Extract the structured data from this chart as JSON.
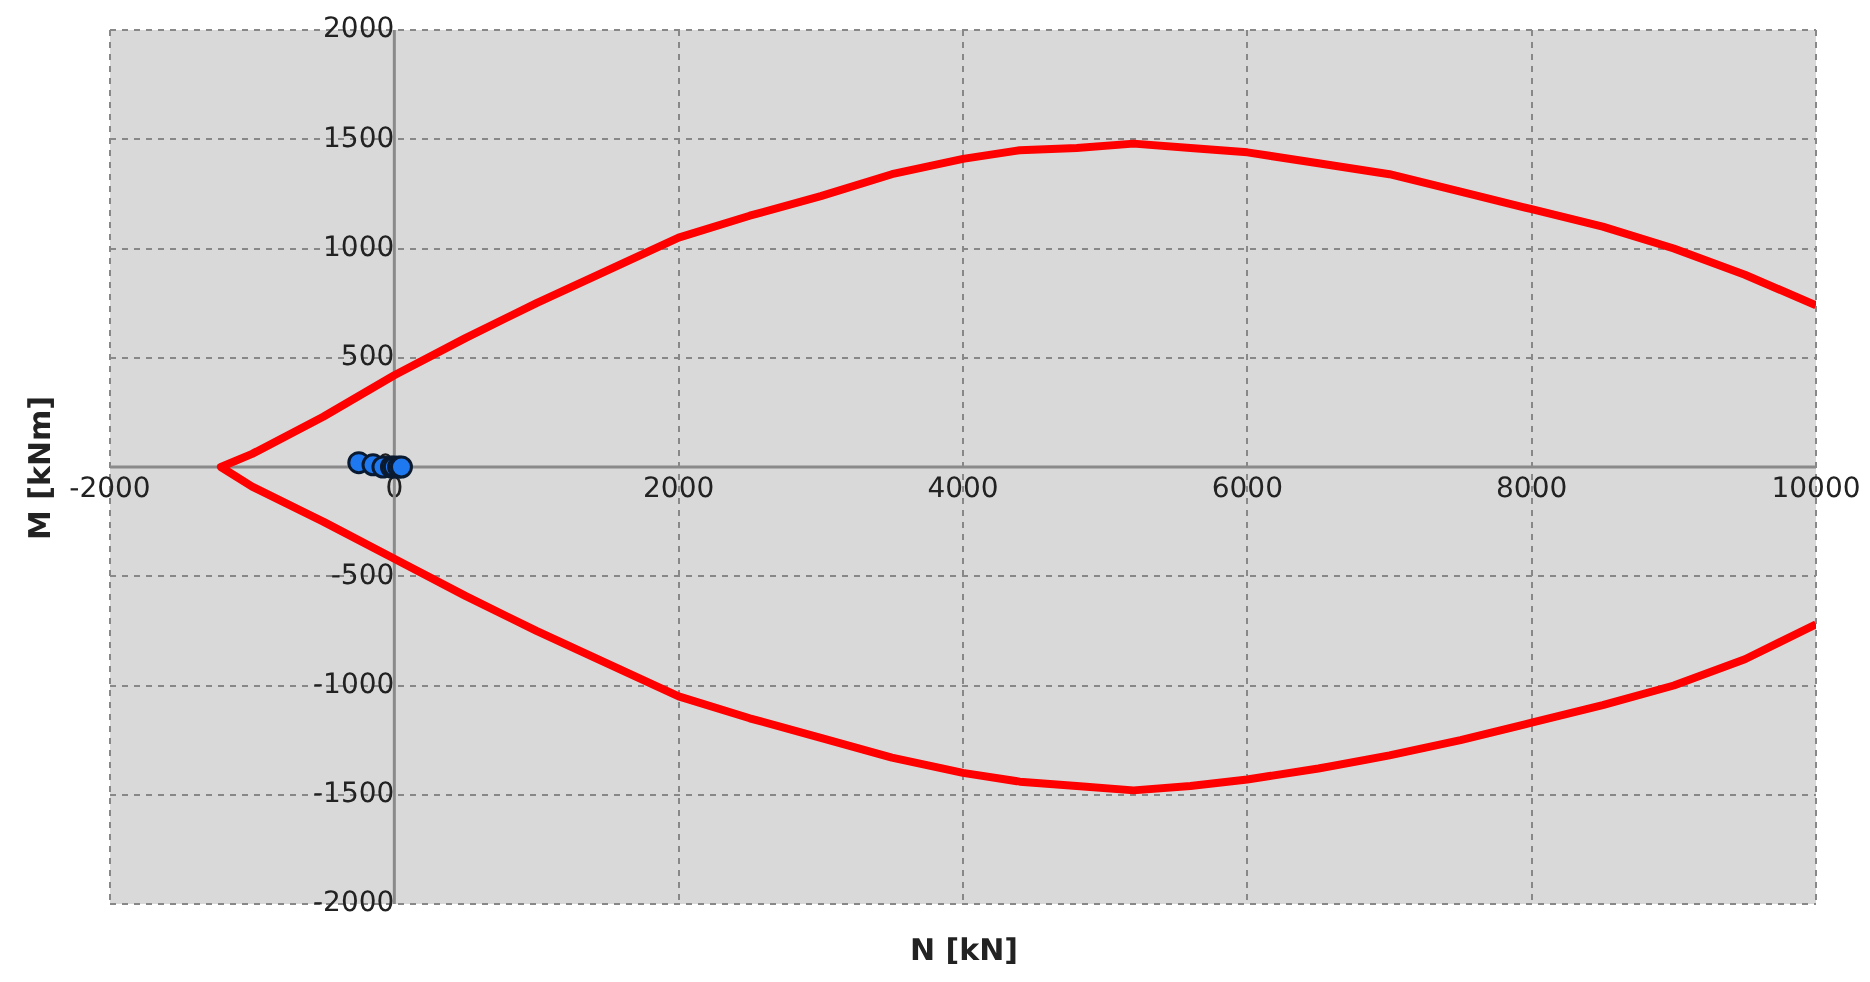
{
  "chart_data": {
    "type": "line",
    "xlabel": "N [kN]",
    "ylabel": "M [kNm]",
    "xlim": [
      -2000,
      10000
    ],
    "ylim": [
      -2000,
      2000
    ],
    "xticks": [
      -2000,
      0,
      2000,
      4000,
      6000,
      8000,
      10000
    ],
    "yticks": [
      -2000,
      -1500,
      -1000,
      -500,
      0,
      500,
      1000,
      1500,
      2000
    ],
    "grid": true,
    "series": [
      {
        "type": "line",
        "color": "#ff0000",
        "marker": "none",
        "x": [
          10000,
          9500,
          9000,
          8500,
          8000,
          7500,
          7000,
          6500,
          6000,
          5600,
          5200,
          4800,
          4400,
          4000,
          3500,
          3000,
          2500,
          2000,
          1500,
          1000,
          500,
          0,
          -500,
          -1000,
          -1220,
          -1000,
          -500,
          0,
          500,
          1000,
          1500,
          2000,
          2500,
          3000,
          3500,
          4000,
          4400,
          4800,
          5200,
          5600,
          6000,
          6500,
          7000,
          7500,
          8000,
          8500,
          9000,
          9500,
          10000
        ],
        "values": [
          740,
          880,
          1000,
          1100,
          1180,
          1260,
          1340,
          1390,
          1440,
          1460,
          1480,
          1460,
          1450,
          1410,
          1340,
          1240,
          1150,
          1050,
          900,
          750,
          590,
          420,
          230,
          60,
          0,
          -90,
          -250,
          -420,
          -590,
          -750,
          -900,
          -1050,
          -1150,
          -1240,
          -1330,
          -1400,
          -1440,
          -1460,
          -1480,
          -1460,
          -1430,
          -1380,
          -1320,
          -1250,
          -1170,
          -1090,
          -1000,
          -880,
          -720
        ]
      },
      {
        "type": "scatter",
        "color": "#1e78f0",
        "marker": "circle",
        "x": [
          -250,
          -150,
          -80,
          -20,
          0,
          30,
          50
        ],
        "values": [
          20,
          10,
          0,
          0,
          0,
          0,
          0
        ]
      }
    ]
  }
}
